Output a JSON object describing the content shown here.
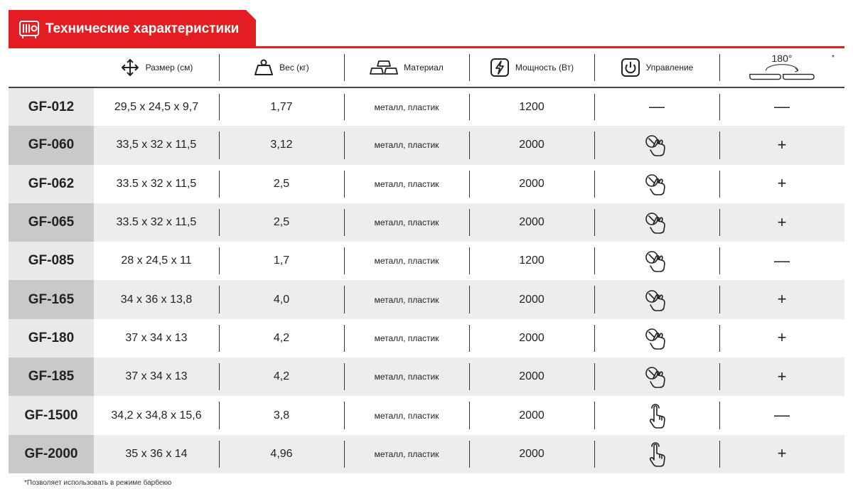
{
  "header": {
    "title": "Технические характеристики",
    "icon": "grill-icon",
    "accent_color": "#e41d22"
  },
  "columns": {
    "size": {
      "label": "Размер (см)",
      "icon": "four-arrows-icon"
    },
    "weight": {
      "label": "Вес (кг)",
      "icon": "weight-icon"
    },
    "material": {
      "label": "Материал",
      "icon": "ingots-icon"
    },
    "power": {
      "label": "Мощность (Вт)",
      "icon": "lightning-icon"
    },
    "control": {
      "label": "Управление",
      "icon": "power-button-icon"
    },
    "grill": {
      "label": "180°",
      "asterisk": "*",
      "icon": "open-grill-icon"
    }
  },
  "rows": [
    {
      "model": "GF-012",
      "size": "29,5 x 24,5 x 9,7",
      "weight": "1,77",
      "material": "металл, пластик",
      "power": "1200",
      "control": "—",
      "grill": "—"
    },
    {
      "model": "GF-060",
      "size": "33,5 x 32 x 11,5",
      "weight": "3,12",
      "material": "металл, пластик",
      "power": "2000",
      "control": "rotary-knob-icon",
      "grill": "+"
    },
    {
      "model": "GF-062",
      "size": "33.5 x 32 x 11,5",
      "weight": "2,5",
      "material": "металл, пластик",
      "power": "2000",
      "control": "rotary-knob-icon",
      "grill": "+"
    },
    {
      "model": "GF-065",
      "size": "33.5 x 32 x 11,5",
      "weight": "2,5",
      "material": "металл, пластик",
      "power": "2000",
      "control": "rotary-knob-icon",
      "grill": "+"
    },
    {
      "model": "GF-085",
      "size": "28 x 24,5 x 11",
      "weight": "1,7",
      "material": "металл, пластик",
      "power": "1200",
      "control": "rotary-knob-icon",
      "grill": "—"
    },
    {
      "model": "GF-165",
      "size": "34 x 36 x 13,8",
      "weight": "4,0",
      "material": "металл, пластик",
      "power": "2000",
      "control": "rotary-knob-icon",
      "grill": "+"
    },
    {
      "model": "GF-180",
      "size": "37 x 34 x 13",
      "weight": "4,2",
      "material": "металл, пластик",
      "power": "2000",
      "control": "rotary-knob-icon",
      "grill": "+"
    },
    {
      "model": "GF-185",
      "size": "37 x 34 x 13",
      "weight": "4,2",
      "material": "металл, пластик",
      "power": "2000",
      "control": "rotary-knob-icon",
      "grill": "+"
    },
    {
      "model": "GF-1500",
      "size": "34,2 x 34,8 x 15,6",
      "weight": "3,8",
      "material": "металл, пластик",
      "power": "2000",
      "control": "touch-finger-icon",
      "grill": "—"
    },
    {
      "model": "GF-2000",
      "size": "35 x 36 x 14",
      "weight": "4,96",
      "material": "металл, пластик",
      "power": "2000",
      "control": "touch-finger-icon",
      "grill": "+"
    }
  ],
  "footnote": "*Позволяет использовать в режиме барбекю"
}
